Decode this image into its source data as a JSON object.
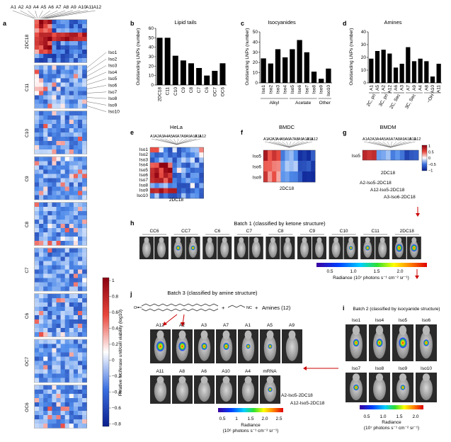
{
  "colnames": [
    "A1",
    "A2",
    "A3",
    "A4",
    "A5",
    "A6",
    "A7",
    "A8",
    "A9",
    "A10",
    "A11",
    "A12"
  ],
  "isos": [
    "Iso1",
    "Iso2",
    "Iso3",
    "Iso4",
    "Iso5",
    "Iso6",
    "Iso7",
    "Iso8",
    "Iso9",
    "Iso10"
  ],
  "panels": {
    "a": {
      "letter": "a",
      "blocks": [
        "2DC18",
        "C11",
        "C10",
        "C9",
        "C8",
        "C7",
        "C6",
        "OC7",
        "OC6"
      ],
      "colorbar_label": "Relative luciferase unit/cell viability (log10)",
      "ticks": [
        "1",
        "0.8",
        "0.6",
        "0.4",
        "0.2",
        "0",
        "−0.2",
        "−0.4",
        "−0.6",
        "−0.8"
      ]
    },
    "b": {
      "letter": "b",
      "title": "Lipid tails",
      "ylabel": "Outstanding LNPs (number)"
    },
    "c": {
      "letter": "c",
      "title": "Isocyanides",
      "ylabel": "Outstanding LNPs (number)",
      "groups": [
        "Alkyl",
        "Acetate",
        "Other"
      ]
    },
    "d": {
      "letter": "d",
      "title": "Amines",
      "ylabel": "Outstanding LNPs (number)",
      "groups": [
        "2C, pri",
        "3C, pri",
        "2C, Sec",
        "3C, Sec",
        "−OH"
      ]
    },
    "e": {
      "letter": "e",
      "title": "HeLa",
      "xlabel": "2DC18"
    },
    "f": {
      "letter": "f",
      "title": "BMDC",
      "xlabel": "2DC18",
      "rows": [
        "Iso5",
        "Iso6",
        "Iso9"
      ]
    },
    "g": {
      "letter": "g",
      "title": "BMDM",
      "xlabel": "2DC18",
      "row": "Iso5",
      "ticks": [
        "1",
        "0.5",
        "0",
        "−0.5",
        "−1"
      ],
      "hits": [
        "A2-Iso5-2DC18",
        "A12-Iso5-2DC18",
        "A3-Iso6-2DC18"
      ]
    },
    "h": {
      "letter": "h",
      "title": "Batch 1 (classified by ketone structure)",
      "labels": [
        "CC6",
        "CC7",
        "C6",
        "C7",
        "C8",
        "C9",
        "C10",
        "C11",
        "2DC18"
      ],
      "ticks": [
        "0.5",
        "1.0",
        "1.5",
        "2.0"
      ],
      "radiance": "Radiance (10⁷ photons s⁻¹ cm⁻² sr⁻¹)"
    },
    "i": {
      "letter": "i",
      "title": "Batch 2 (classified by isocyanide structure)",
      "row1": [
        "Iso1",
        "Iso4",
        "Iso5",
        "Iso6"
      ],
      "row2": [
        "Iso7",
        "Iso8",
        "Iso9",
        "Iso10"
      ],
      "ticks": [
        "0.5",
        "1.0",
        "1.5",
        "2.0"
      ],
      "radiance_label": "Radiance",
      "radiance_units": "(10⁷ photons s⁻¹ cm⁻² sr⁻¹)"
    },
    "j": {
      "letter": "j",
      "title": "Batch 3 (classified by amine structure)",
      "amines": "Amines (12)",
      "row1": [
        "A12",
        "A2",
        "A3",
        "A7",
        "A1",
        "A5",
        "A9"
      ],
      "row2": [
        "A11",
        "A8",
        "A6",
        "A10",
        "A4",
        "mRNA"
      ],
      "hits": [
        "A2-Iso5-2DC18",
        "A12-Iso5-2DC18"
      ],
      "ticks": [
        "0.5",
        "1",
        "1.5",
        "2.0",
        "2.5"
      ],
      "radiance_label": "Radiance",
      "radiance_units": "(10⁶ photons s⁻¹ cm⁻² sr⁻¹)"
    }
  },
  "chart_data": [
    {
      "type": "bar",
      "title": "Lipid tails",
      "ylabel": "Outstanding LNPs (number)",
      "ylim": [
        0,
        60
      ],
      "yticks": [
        0,
        10,
        20,
        30,
        40,
        50,
        60
      ],
      "categories": [
        "2DC18",
        "C11",
        "C10",
        "C9",
        "C8",
        "C7",
        "C6",
        "OC7",
        "OC6"
      ],
      "values": [
        50,
        50,
        31,
        26,
        23,
        18,
        10,
        15,
        23
      ]
    },
    {
      "type": "bar",
      "title": "Isocyanides",
      "ylabel": "Outstanding LNPs (number)",
      "ylim": [
        0,
        50
      ],
      "yticks": [
        0,
        10,
        20,
        30,
        40,
        50
      ],
      "categories": [
        "Iso1",
        "Iso2",
        "Iso3",
        "Iso4",
        "Iso5",
        "Iso6",
        "Iso7",
        "Iso8",
        "Iso9",
        "Iso10"
      ],
      "values": [
        24,
        19,
        33,
        25,
        33,
        42,
        30,
        11,
        4,
        14
      ]
    },
    {
      "type": "bar",
      "title": "Amines",
      "ylabel": "Outstanding LNPs (number)",
      "ylim": [
        0,
        40
      ],
      "yticks": [
        0,
        10,
        20,
        30,
        40
      ],
      "categories": [
        "A1",
        "A5",
        "A2",
        "A12",
        "A6",
        "A3",
        "A7",
        "A9",
        "A4",
        "A8",
        "A10",
        "A11"
      ],
      "values": [
        19,
        25,
        26,
        23,
        12,
        15,
        28,
        17,
        19,
        17,
        5,
        15
      ]
    }
  ]
}
